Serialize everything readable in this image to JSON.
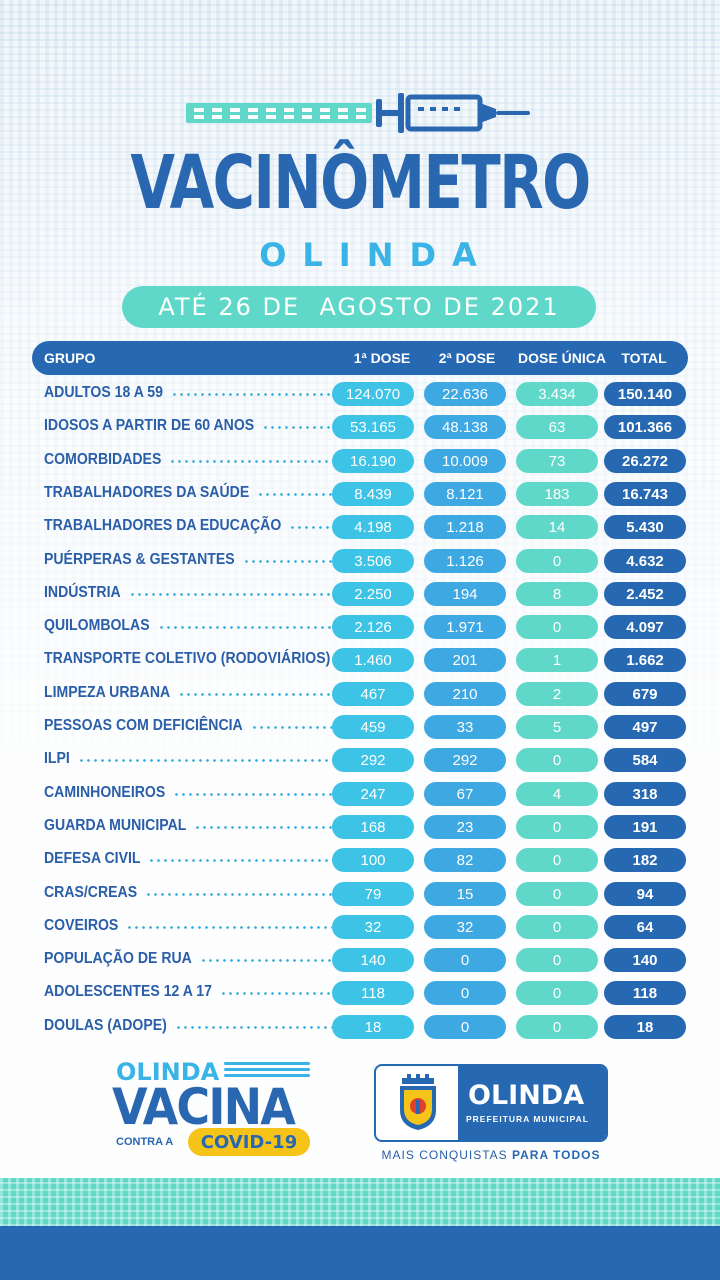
{
  "header": {
    "title": "VACINÔMETRO",
    "subtitle": "OLINDA",
    "date": "ATÉ 26 DE  AGOSTO DE 2021"
  },
  "table": {
    "columns": [
      "GRUPO",
      "1ª DOSE",
      "2ª DOSE",
      "DOSE ÚNICA",
      "TOTAL"
    ],
    "rows": [
      {
        "group": "ADULTOS 18 A 59",
        "dose1": "124.070",
        "dose2": "22.636",
        "single": "3.434",
        "total": "150.140"
      },
      {
        "group": "IDOSOS A PARTIR DE 60 ANOS",
        "dose1": "53.165",
        "dose2": "48.138",
        "single": "63",
        "total": "101.366"
      },
      {
        "group": "COMORBIDADES",
        "dose1": "16.190",
        "dose2": "10.009",
        "single": "73",
        "total": "26.272"
      },
      {
        "group": "TRABALHADORES DA SAÚDE",
        "dose1": "8.439",
        "dose2": "8.121",
        "single": "183",
        "total": "16.743"
      },
      {
        "group": "TRABALHADORES DA EDUCAÇÃO",
        "dose1": "4.198",
        "dose2": "1.218",
        "single": "14",
        "total": "5.430"
      },
      {
        "group": "PUÉRPERAS & GESTANTES",
        "dose1": "3.506",
        "dose2": "1.126",
        "single": "0",
        "total": "4.632"
      },
      {
        "group": "INDÚSTRIA",
        "dose1": "2.250",
        "dose2": "194",
        "single": "8",
        "total": "2.452"
      },
      {
        "group": "QUILOMBOLAS",
        "dose1": "2.126",
        "dose2": "1.971",
        "single": "0",
        "total": "4.097"
      },
      {
        "group": "TRANSPORTE COLETIVO (RODOVIÁRIOS)",
        "dose1": "1.460",
        "dose2": "201",
        "single": "1",
        "total": "1.662"
      },
      {
        "group": "LIMPEZA URBANA",
        "dose1": "467",
        "dose2": "210",
        "single": "2",
        "total": "679"
      },
      {
        "group": "PESSOAS COM DEFICIÊNCIA",
        "dose1": "459",
        "dose2": "33",
        "single": "5",
        "total": "497"
      },
      {
        "group": "ILPI",
        "dose1": "292",
        "dose2": "292",
        "single": "0",
        "total": "584"
      },
      {
        "group": "CAMINHONEIROS",
        "dose1": "247",
        "dose2": "67",
        "single": "4",
        "total": "318"
      },
      {
        "group": "GUARDA MUNICIPAL",
        "dose1": "168",
        "dose2": "23",
        "single": "0",
        "total": "191"
      },
      {
        "group": "DEFESA CIVIL",
        "dose1": "100",
        "dose2": "82",
        "single": "0",
        "total": "182"
      },
      {
        "group": "CRAS/CREAS",
        "dose1": "79",
        "dose2": "15",
        "single": "0",
        "total": "94"
      },
      {
        "group": "COVEIROS",
        "dose1": "32",
        "dose2": "32",
        "single": "0",
        "total": "64"
      },
      {
        "group": "POPULAÇÃO DE RUA",
        "dose1": "140",
        "dose2": "0",
        "single": "0",
        "total": "140"
      },
      {
        "group": "ADOLESCENTES 12 A 17",
        "dose1": "118",
        "dose2": "0",
        "single": "0",
        "total": "118"
      },
      {
        "group": "DOULAS (ADOPE)",
        "dose1": "18",
        "dose2": "0",
        "single": "0",
        "total": "18"
      }
    ]
  },
  "campaign_logo": {
    "line1": "OLINDA",
    "line2": "VACINA",
    "line3": "CONTRA A",
    "badge": "COVID-19"
  },
  "city_logo": {
    "name": "OLINDA",
    "sub": "PREFEITURA MUNICIPAL",
    "slogan_prefix": "MAIS CONQUISTAS ",
    "slogan_bold": "PARA TODOS"
  },
  "colors": {
    "dark_blue": "#2668b2",
    "light_blue": "#3dc3e6",
    "mid_blue": "#3ea8e3",
    "teal": "#5fd8c9",
    "yellow": "#f6c418"
  },
  "icons": [
    "syringe-icon",
    "coat-of-arms-icon"
  ]
}
